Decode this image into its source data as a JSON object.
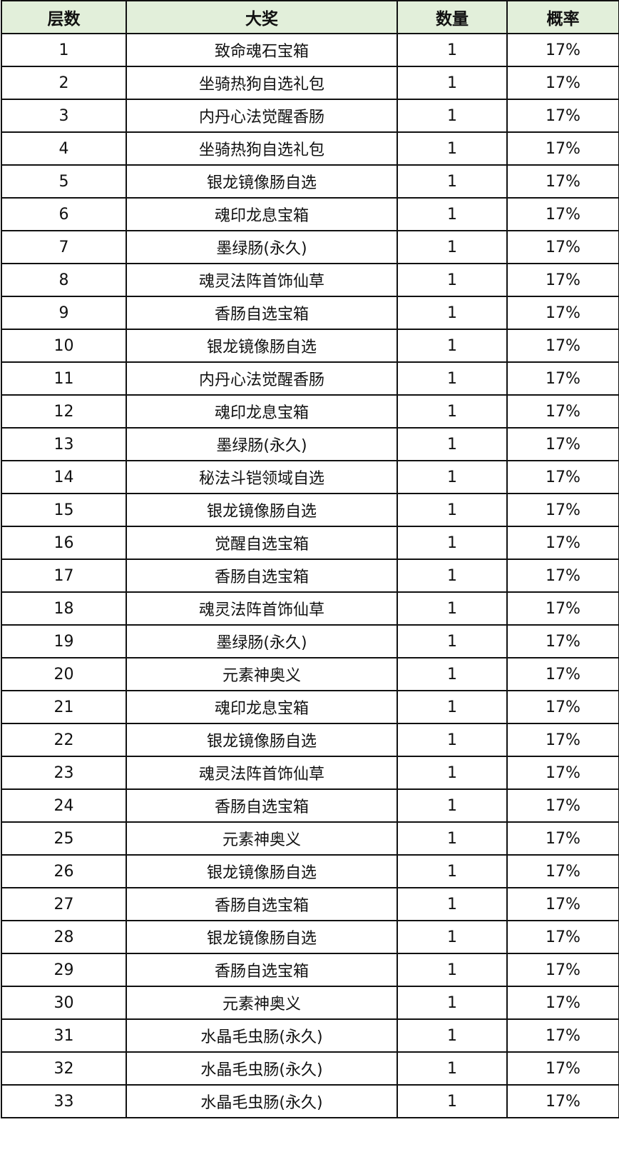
{
  "headers": [
    "层数",
    "大奖",
    "数量",
    "概率"
  ],
  "colors": {
    "header_bg": "#e2efda",
    "border": "#111111"
  },
  "rows": [
    [
      "1",
      "致命魂石宝箱",
      "1",
      "17%"
    ],
    [
      "2",
      "坐骑热狗自选礼包",
      "1",
      "17%"
    ],
    [
      "3",
      "内丹心法觉醒香肠",
      "1",
      "17%"
    ],
    [
      "4",
      "坐骑热狗自选礼包",
      "1",
      "17%"
    ],
    [
      "5",
      "银龙镜像肠自选",
      "1",
      "17%"
    ],
    [
      "6",
      "魂印龙息宝箱",
      "1",
      "17%"
    ],
    [
      "7",
      "墨绿肠(永久)",
      "1",
      "17%"
    ],
    [
      "8",
      "魂灵法阵首饰仙草",
      "1",
      "17%"
    ],
    [
      "9",
      "香肠自选宝箱",
      "1",
      "17%"
    ],
    [
      "10",
      "银龙镜像肠自选",
      "1",
      "17%"
    ],
    [
      "11",
      "内丹心法觉醒香肠",
      "1",
      "17%"
    ],
    [
      "12",
      "魂印龙息宝箱",
      "1",
      "17%"
    ],
    [
      "13",
      "墨绿肠(永久)",
      "1",
      "17%"
    ],
    [
      "14",
      "秘法斗铠领域自选",
      "1",
      "17%"
    ],
    [
      "15",
      "银龙镜像肠自选",
      "1",
      "17%"
    ],
    [
      "16",
      "觉醒自选宝箱",
      "1",
      "17%"
    ],
    [
      "17",
      "香肠自选宝箱",
      "1",
      "17%"
    ],
    [
      "18",
      "魂灵法阵首饰仙草",
      "1",
      "17%"
    ],
    [
      "19",
      "墨绿肠(永久)",
      "1",
      "17%"
    ],
    [
      "20",
      "元素神奥义",
      "1",
      "17%"
    ],
    [
      "21",
      "魂印龙息宝箱",
      "1",
      "17%"
    ],
    [
      "22",
      "银龙镜像肠自选",
      "1",
      "17%"
    ],
    [
      "23",
      "魂灵法阵首饰仙草",
      "1",
      "17%"
    ],
    [
      "24",
      "香肠自选宝箱",
      "1",
      "17%"
    ],
    [
      "25",
      "元素神奥义",
      "1",
      "17%"
    ],
    [
      "26",
      "银龙镜像肠自选",
      "1",
      "17%"
    ],
    [
      "27",
      "香肠自选宝箱",
      "1",
      "17%"
    ],
    [
      "28",
      "银龙镜像肠自选",
      "1",
      "17%"
    ],
    [
      "29",
      "香肠自选宝箱",
      "1",
      "17%"
    ],
    [
      "30",
      "元素神奥义",
      "1",
      "17%"
    ],
    [
      "31",
      "水晶毛虫肠(永久)",
      "1",
      "17%"
    ],
    [
      "32",
      "水晶毛虫肠(永久)",
      "1",
      "17%"
    ],
    [
      "33",
      "水晶毛虫肠(永久)",
      "1",
      "17%"
    ]
  ]
}
